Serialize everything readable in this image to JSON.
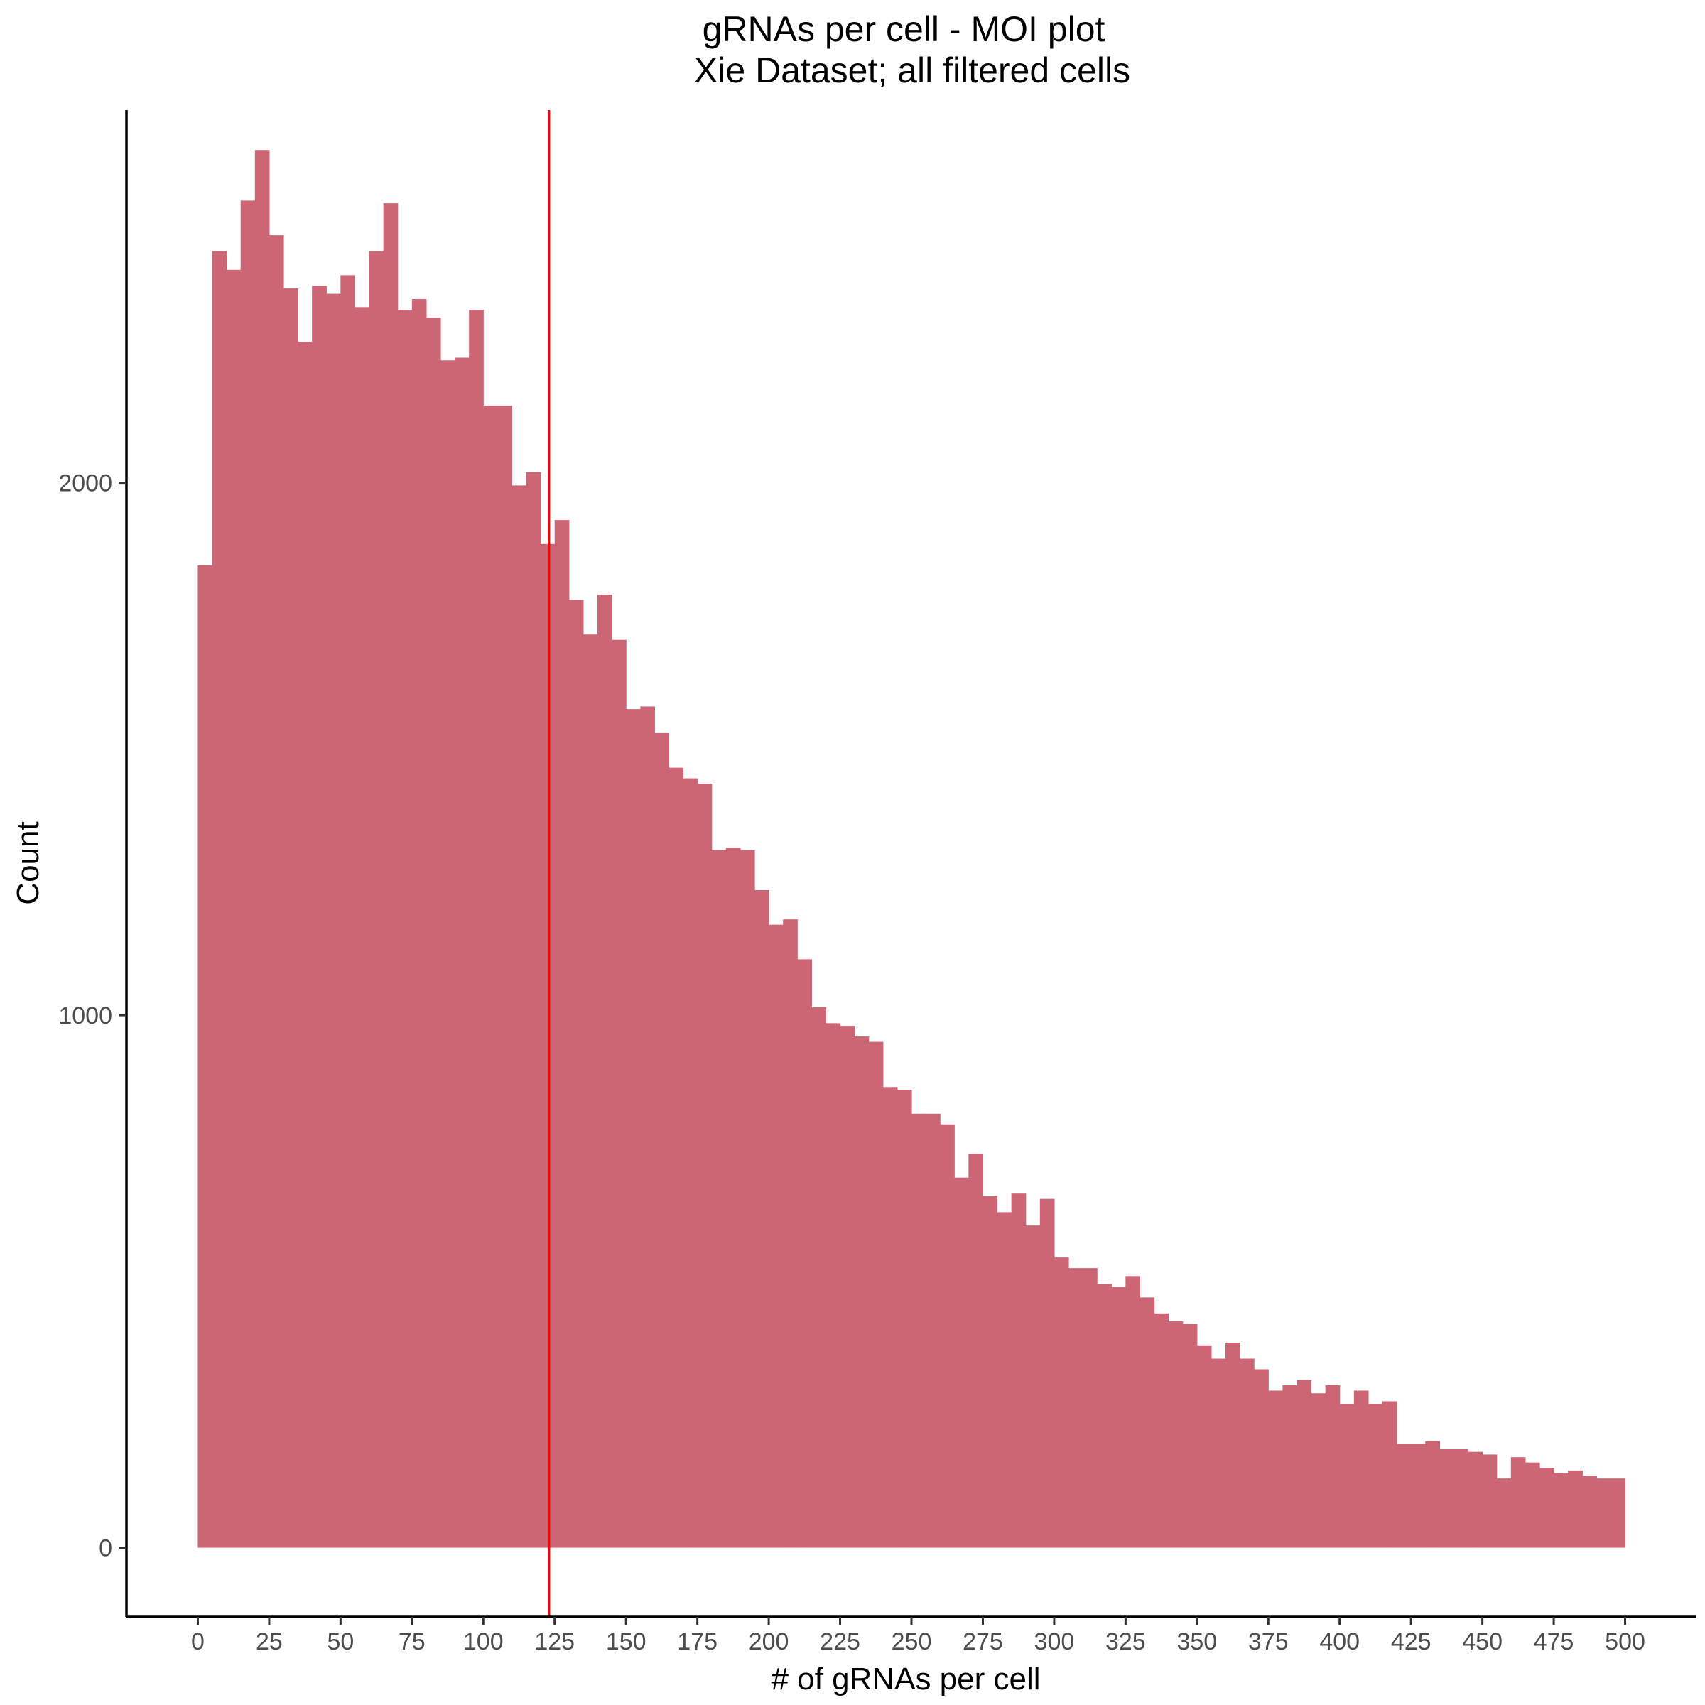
{
  "chart_data": {
    "type": "bar",
    "title": "gRNAs per cell - MOI plot",
    "subtitle": "Xie Dataset; all filtered cells",
    "xlabel": "# of gRNAs per cell",
    "ylabel": "Count",
    "xlim": [
      -25,
      525
    ],
    "ylim": [
      -130,
      2700
    ],
    "bin_width": 5,
    "x_ticks": [
      0,
      25,
      50,
      75,
      100,
      125,
      150,
      175,
      200,
      225,
      250,
      275,
      300,
      325,
      350,
      375,
      400,
      425,
      450,
      475,
      500
    ],
    "x_tick_labels": [
      "0",
      "25",
      "50",
      "75",
      "100",
      "125",
      "150",
      "175",
      "200",
      "225",
      "250",
      "275",
      "300",
      "325",
      "350",
      "375",
      "400",
      "425",
      "450",
      "475",
      "500"
    ],
    "y_ticks": [
      0,
      1000,
      2000
    ],
    "y_tick_labels": [
      "0",
      "1000",
      "2000"
    ],
    "x": [
      0,
      5,
      10,
      15,
      20,
      25,
      30,
      35,
      40,
      45,
      50,
      55,
      60,
      65,
      70,
      75,
      80,
      85,
      90,
      95,
      100,
      105,
      110,
      115,
      120,
      125,
      130,
      135,
      140,
      145,
      150,
      155,
      160,
      165,
      170,
      175,
      180,
      185,
      190,
      195,
      200,
      205,
      210,
      215,
      220,
      225,
      230,
      235,
      240,
      245,
      250,
      255,
      260,
      265,
      270,
      275,
      280,
      285,
      290,
      295,
      300,
      305,
      310,
      315,
      320,
      325,
      330,
      335,
      340,
      345,
      350,
      355,
      360,
      365,
      370,
      375,
      380,
      385,
      390,
      395,
      400,
      405,
      410,
      415,
      420,
      425,
      430,
      435,
      440,
      445,
      450,
      455,
      460,
      465,
      470,
      475,
      480,
      485,
      490,
      495
    ],
    "values": [
      1845,
      2435,
      2400,
      2530,
      2625,
      2465,
      2365,
      2265,
      2370,
      2355,
      2390,
      2330,
      2435,
      2525,
      2325,
      2345,
      2310,
      2230,
      2235,
      2325,
      2145,
      2145,
      1995,
      2020,
      1885,
      1930,
      1780,
      1715,
      1790,
      1705,
      1575,
      1580,
      1530,
      1465,
      1445,
      1435,
      1310,
      1315,
      1310,
      1235,
      1170,
      1180,
      1105,
      1015,
      985,
      980,
      960,
      950,
      865,
      860,
      815,
      815,
      795,
      695,
      740,
      660,
      630,
      665,
      605,
      655,
      545,
      525,
      525,
      495,
      490,
      510,
      470,
      440,
      425,
      420,
      380,
      355,
      385,
      355,
      335,
      295,
      305,
      315,
      290,
      305,
      270,
      295,
      270,
      275,
      195,
      195,
      200,
      185,
      185,
      180,
      175,
      130,
      170,
      160,
      150,
      140,
      145,
      135,
      130,
      130
    ],
    "vline": {
      "x": 123,
      "color": "#ff0000"
    },
    "bar_color": "#cc6674",
    "grid": false,
    "legend": "none"
  }
}
